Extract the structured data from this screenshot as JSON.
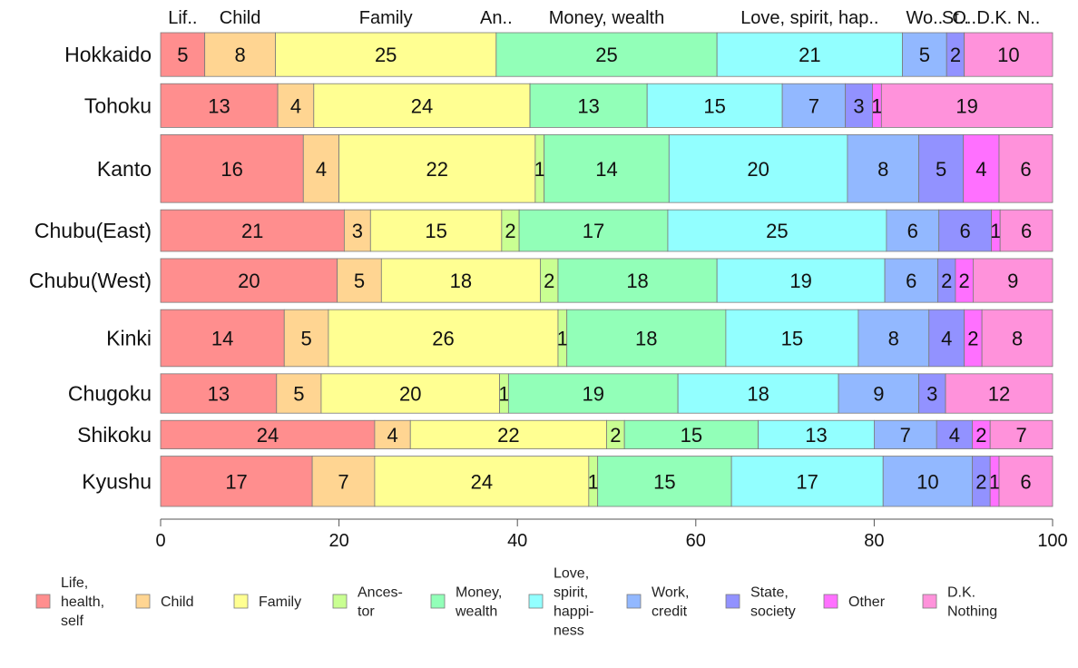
{
  "chart_data": {
    "type": "bar",
    "orientation": "horizontal",
    "stacked": true,
    "categories": [
      "Hokkaido",
      "Tohoku",
      "Kanto",
      "Chubu(East)",
      "Chubu(West)",
      "Kinki",
      "Chugoku",
      "Shikoku",
      "Kyushu"
    ],
    "bar_relative_heights": [
      1.0,
      1.0,
      1.55,
      0.95,
      1.0,
      1.3,
      0.9,
      0.65,
      1.15
    ],
    "series": [
      {
        "name": "Life,\nhealth,\nself",
        "color": "#ff8e8e",
        "values": [
          5,
          13,
          16,
          21,
          20,
          14,
          13,
          24,
          17
        ]
      },
      {
        "name": "Child",
        "color": "#ffd592",
        "values": [
          8,
          4,
          4,
          3,
          5,
          5,
          5,
          4,
          7
        ]
      },
      {
        "name": "Family",
        "color": "#ffff92",
        "values": [
          25,
          24,
          22,
          15,
          18,
          26,
          20,
          22,
          24
        ]
      },
      {
        "name": "Ances-\ntor",
        "color": "#c9ff92",
        "values": [
          0,
          0,
          1,
          2,
          2,
          1,
          1,
          2,
          1
        ]
      },
      {
        "name": "Money,\nwealth",
        "color": "#92ffb8",
        "values": [
          25,
          13,
          14,
          17,
          18,
          18,
          19,
          15,
          15
        ]
      },
      {
        "name": "Love,\nspirit,\nhappi-\nness",
        "color": "#92ffff",
        "values": [
          21,
          15,
          20,
          25,
          19,
          15,
          18,
          13,
          17
        ]
      },
      {
        "name": "Work,\ncredit",
        "color": "#92b8ff",
        "values": [
          5,
          7,
          8,
          6,
          6,
          8,
          9,
          7,
          10
        ]
      },
      {
        "name": "State,\nsociety",
        "color": "#9292ff",
        "values": [
          2,
          3,
          5,
          6,
          2,
          4,
          3,
          4,
          2
        ]
      },
      {
        "name": "Other",
        "color": "#ff70ff",
        "values": [
          0,
          1,
          4,
          1,
          2,
          2,
          0,
          2,
          1
        ]
      },
      {
        "name": "D.K.\nNothing",
        "color": "#ff92db",
        "values": [
          10,
          19,
          6,
          6,
          9,
          8,
          12,
          7,
          6
        ]
      }
    ],
    "top_labels": [
      "Lif..",
      "Child",
      "Family",
      "An..",
      "Money, wealth",
      "Love, spirit, hap..",
      "Wo..",
      "St..",
      "O..",
      "D.K. N.."
    ],
    "xlim": [
      0,
      100
    ],
    "xticks": [
      0,
      20,
      40,
      60,
      80,
      100
    ],
    "xlabel": "",
    "ylabel": "",
    "title": "",
    "grid": false,
    "legend_position": "bottom"
  }
}
